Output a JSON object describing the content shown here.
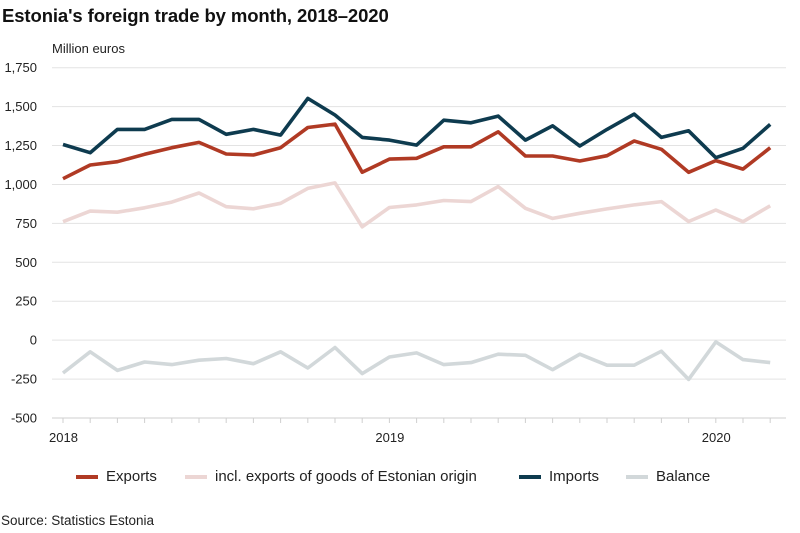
{
  "chart_data": {
    "type": "line",
    "title": "Estonia's foreign trade by month, 2018–2020",
    "ylabel": "Million euros",
    "xlabel": "",
    "ylim": [
      -500,
      1750
    ],
    "yticks": [
      1750,
      1500,
      1250,
      1000,
      750,
      500,
      250,
      0,
      -250,
      -500
    ],
    "ytick_labels": [
      "1,750",
      "1,500",
      "1,250",
      "1,000",
      "750",
      "500",
      "250",
      "0",
      "-250",
      "-500"
    ],
    "x": [
      "2018-01",
      "2018-02",
      "2018-03",
      "2018-04",
      "2018-05",
      "2018-06",
      "2018-07",
      "2018-08",
      "2018-09",
      "2018-10",
      "2018-11",
      "2018-12",
      "2019-01",
      "2019-02",
      "2019-03",
      "2019-04",
      "2019-05",
      "2019-06",
      "2019-07",
      "2019-08",
      "2019-09",
      "2019-10",
      "2019-11",
      "2019-12",
      "2020-01",
      "2020-02",
      "2020-03"
    ],
    "xtick_labels": [
      {
        "index": 0,
        "label": "2018"
      },
      {
        "index": 12,
        "label": "2019"
      },
      {
        "index": 24,
        "label": "2020"
      }
    ],
    "grid": true,
    "legend_position": "bottom",
    "series": [
      {
        "name": "Exports",
        "color": "#b03a24",
        "values": [
          1037,
          1125,
          1146,
          1194,
          1236,
          1270,
          1196,
          1189,
          1236,
          1366,
          1388,
          1078,
          1163,
          1168,
          1242,
          1242,
          1338,
          1183,
          1183,
          1151,
          1185,
          1279,
          1226,
          1078,
          1153,
          1099,
          1236
        ]
      },
      {
        "name": "incl. exports of goods of Estonian origin",
        "color": "#ecd6d4",
        "values": [
          761,
          829,
          822,
          850,
          887,
          945,
          857,
          844,
          879,
          975,
          1010,
          728,
          852,
          869,
          897,
          890,
          986,
          847,
          782,
          815,
          843,
          869,
          890,
          762,
          836,
          761,
          863
        ]
      },
      {
        "name": "Imports",
        "color": "#0e3b4f",
        "values": [
          1257,
          1204,
          1354,
          1354,
          1418,
          1418,
          1322,
          1354,
          1317,
          1553,
          1446,
          1302,
          1285,
          1253,
          1413,
          1396,
          1439,
          1285,
          1377,
          1247,
          1354,
          1452,
          1302,
          1345,
          1172,
          1232,
          1386
        ]
      },
      {
        "name": "Balance",
        "color": "#d2d8da",
        "values": [
          -211,
          -75,
          -194,
          -140,
          -157,
          -129,
          -118,
          -151,
          -75,
          -179,
          -47,
          -215,
          -108,
          -82,
          -157,
          -144,
          -90,
          -97,
          -190,
          -90,
          -161,
          -161,
          -71,
          -252,
          -11,
          -125,
          -144
        ]
      }
    ]
  },
  "legend": {
    "items": [
      {
        "label": "Exports",
        "color": "#b03a24"
      },
      {
        "label": "incl. exports of goods of Estonian origin",
        "color": "#ecd6d4"
      },
      {
        "label": "Imports",
        "color": "#0e3b4f"
      },
      {
        "label": "Balance",
        "color": "#d2d8da"
      }
    ]
  },
  "source": "Source: Statistics Estonia"
}
